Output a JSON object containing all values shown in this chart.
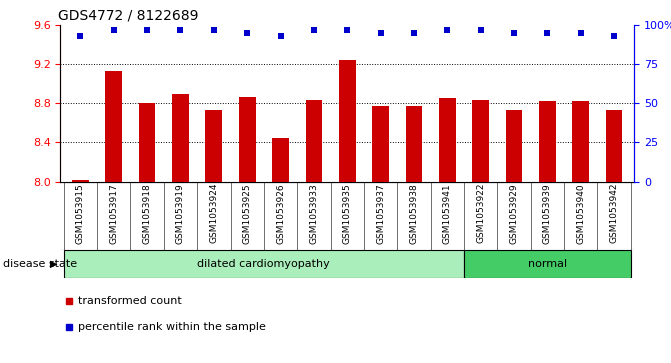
{
  "title": "GDS4772 / 8122689",
  "samples": [
    "GSM1053915",
    "GSM1053917",
    "GSM1053918",
    "GSM1053919",
    "GSM1053924",
    "GSM1053925",
    "GSM1053926",
    "GSM1053933",
    "GSM1053935",
    "GSM1053937",
    "GSM1053938",
    "GSM1053941",
    "GSM1053922",
    "GSM1053929",
    "GSM1053939",
    "GSM1053940",
    "GSM1053942"
  ],
  "bar_values": [
    8.02,
    9.13,
    8.8,
    8.9,
    8.73,
    8.87,
    8.45,
    8.84,
    9.25,
    8.77,
    8.77,
    8.86,
    8.84,
    8.73,
    8.83,
    8.83,
    8.73
  ],
  "dot_values": [
    93,
    97,
    97,
    97,
    97,
    95,
    93,
    97,
    97,
    95,
    95,
    97,
    97,
    95,
    95,
    95,
    93
  ],
  "disease_groups": [
    {
      "display": "dilated cardiomyopathy",
      "start": 0,
      "end": 11,
      "color": "#aaeebb"
    },
    {
      "display": "normal",
      "start": 12,
      "end": 16,
      "color": "#44cc66"
    }
  ],
  "ylim_left": [
    8.0,
    9.6
  ],
  "ylim_right": [
    0,
    100
  ],
  "yticks_left": [
    8.0,
    8.4,
    8.8,
    9.2,
    9.6
  ],
  "yticks_right": [
    0,
    25,
    50,
    75,
    100
  ],
  "ytick_labels_right": [
    "0",
    "25",
    "50",
    "75",
    "100%"
  ],
  "bar_color": "#cc0000",
  "dot_color": "#0000cc",
  "bar_width": 0.5,
  "legend_items": [
    {
      "label": "transformed count",
      "color": "#cc0000"
    },
    {
      "label": "percentile rank within the sample",
      "color": "#0000cc"
    }
  ],
  "disease_state_label": "disease state",
  "xtick_bg_color": "#cccccc",
  "dot_scatter_size": 18
}
